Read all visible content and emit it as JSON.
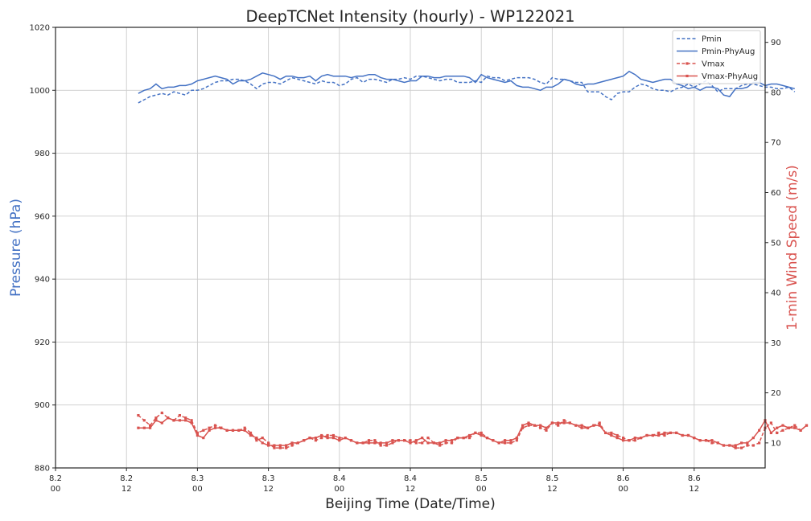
{
  "chart_data": {
    "type": "line",
    "title": "DeepTCNet Intensity (hourly) - WP122021",
    "xlabel": "Beijing Time (Date/Time)",
    "ylabel_left": "Pressure (hPa)",
    "ylabel_right": "1-min Wind Speed (m/s)",
    "grid": true,
    "legend_position": "top-right",
    "x_unit": "hours",
    "x_ticks": [
      {
        "x": 0,
        "label_date": "8.2",
        "label_time": "00"
      },
      {
        "x": 12,
        "label_date": "8.2",
        "label_time": "12"
      },
      {
        "x": 24,
        "label_date": "8.3",
        "label_time": "00"
      },
      {
        "x": 36,
        "label_date": "8.3",
        "label_time": "12"
      },
      {
        "x": 48,
        "label_date": "8.4",
        "label_time": "00"
      },
      {
        "x": 60,
        "label_date": "8.4",
        "label_time": "12"
      },
      {
        "x": 72,
        "label_date": "8.5",
        "label_time": "00"
      },
      {
        "x": 84,
        "label_date": "8.5",
        "label_time": "12"
      },
      {
        "x": 96,
        "label_date": "8.6",
        "label_time": "00"
      },
      {
        "x": 108,
        "label_date": "8.6",
        "label_time": "12"
      }
    ],
    "xlim": [
      0,
      120
    ],
    "y_left": {
      "lim": [
        880,
        1020
      ],
      "ticks": [
        880,
        900,
        920,
        940,
        960,
        980,
        1000,
        1020
      ]
    },
    "y_right": {
      "lim": [
        5,
        93
      ],
      "ticks": [
        10,
        20,
        30,
        40,
        50,
        60,
        70,
        80,
        90
      ]
    },
    "colors": {
      "pressure": "#4472c4",
      "wind": "#d9534f",
      "axis_left_label": "#4472c4",
      "axis_right_label": "#d9534f"
    },
    "series": [
      {
        "name": "Pmin",
        "axis": "left",
        "style": "dashed",
        "marker": "none",
        "x_start": 14,
        "x_step": 1,
        "values": [
          996,
          997,
          998,
          998.5,
          999,
          998.5,
          999.5,
          999,
          998.5,
          1000,
          1000,
          1000.5,
          1001.5,
          1002.5,
          1003,
          1003,
          1003.5,
          1003.5,
          1003,
          1002,
          1000.5,
          1002,
          1002.5,
          1002.5,
          1002,
          1003,
          1004,
          1003.5,
          1003,
          1002.5,
          1002,
          1003,
          1002.5,
          1002.5,
          1001.5,
          1002,
          1003.5,
          1004,
          1002.5,
          1003.5,
          1003.5,
          1003,
          1002.5,
          1003.5,
          1003.5,
          1004,
          1003.5,
          1004.5,
          1004.5,
          1004,
          1003.5,
          1003,
          1003.5,
          1003.5,
          1002.5,
          1002.5,
          1002.5,
          1003,
          1002.5,
          1004.5,
          1004,
          1004,
          1003,
          1003.5,
          1004,
          1004,
          1004,
          1003.5,
          1002.5,
          1002,
          1004,
          1003.5,
          1003.5,
          1003,
          1002.5,
          1002.5,
          999.5,
          999.5,
          999.5,
          998,
          997,
          999,
          999.5,
          999.5,
          1001,
          1002,
          1001.5,
          1000.5,
          1000,
          1000,
          999.5,
          1000.5,
          1001,
          1002,
          1001,
          1002,
          1003,
          1001.5,
          999.5,
          1000.5,
          1000.5,
          1000.5,
          1001.5,
          1002,
          1002,
          1001.5,
          1001,
          1001,
          1000.5,
          1000.5,
          1001,
          999.5
        ]
      },
      {
        "name": "Pmin-PhyAug",
        "axis": "left",
        "style": "solid",
        "marker": "none",
        "x_start": 14,
        "x_step": 1,
        "values": [
          999,
          1000,
          1000.5,
          1002,
          1000.5,
          1001,
          1001,
          1001.5,
          1001.5,
          1002,
          1003,
          1003.5,
          1004,
          1004.5,
          1004,
          1003.5,
          1002,
          1003,
          1003,
          1003.5,
          1004.5,
          1005.5,
          1005,
          1004.5,
          1003.5,
          1004.5,
          1004.5,
          1004,
          1004,
          1004.5,
          1003,
          1004.5,
          1005,
          1004.5,
          1004.5,
          1004.5,
          1004,
          1004.5,
          1004.5,
          1005,
          1005,
          1004,
          1003.5,
          1003.5,
          1003,
          1002.5,
          1003,
          1003,
          1004.5,
          1004.5,
          1004,
          1004,
          1004.5,
          1004.5,
          1004.5,
          1004.5,
          1004,
          1002.5,
          1005,
          1004,
          1003.5,
          1003,
          1002.5,
          1003,
          1001.5,
          1001,
          1001,
          1000.5,
          1000,
          1001,
          1001,
          1002,
          1003.5,
          1003,
          1002,
          1001.5,
          1002,
          1002,
          1002.5,
          1003,
          1003.5,
          1004,
          1004.5,
          1006,
          1005,
          1003.5,
          1003,
          1002.5,
          1003,
          1003.5,
          1003.5,
          1002,
          1001.5,
          1000.5,
          1001,
          1000,
          1001,
          1001,
          1000.5,
          998.5,
          998,
          1000.5,
          1000.5,
          1001,
          1002.5,
          1002.5,
          1001.5,
          1002,
          1002,
          1001.5,
          1001,
          1000.5
        ]
      },
      {
        "name": "Vmax",
        "axis": "right",
        "style": "dashed",
        "marker": "square",
        "x_start": 14,
        "x_step": 1,
        "values": [
          15.5,
          14.5,
          13.5,
          15,
          16,
          15,
          14.5,
          15.5,
          15,
          14.5,
          12,
          12.5,
          13,
          13.5,
          13,
          12.5,
          12.5,
          12.5,
          13,
          12,
          10.5,
          11,
          10,
          9,
          9,
          9,
          9.5,
          10,
          10.5,
          11,
          10.5,
          11,
          11.5,
          11.5,
          11,
          11,
          10.5,
          10,
          10,
          10.5,
          10.5,
          9.5,
          9.5,
          10,
          10.5,
          10.5,
          10.5,
          10,
          10,
          11,
          10,
          9.5,
          10,
          10,
          11,
          11,
          11,
          12,
          12,
          11,
          10.5,
          10,
          10,
          10,
          10.5,
          13,
          13.5,
          13.5,
          13,
          12.5,
          14,
          13.5,
          14.5,
          14,
          13.5,
          13,
          13,
          13.5,
          14,
          12,
          12,
          11.5,
          11,
          10.5,
          10.5,
          11,
          11.5,
          11.5,
          12,
          11.5,
          12,
          12,
          11.5,
          11.5,
          11,
          10.5,
          10.5,
          10,
          10,
          9.5,
          9.5,
          9,
          9,
          9.5,
          9.5,
          10,
          13,
          14,
          12,
          12.5,
          13,
          13.5,
          12.5,
          13.5
        ]
      },
      {
        "name": "Vmax-PhyAug",
        "axis": "right",
        "style": "solid",
        "marker": "square",
        "x_start": 14,
        "x_step": 1,
        "values": [
          13,
          13,
          13,
          14.5,
          14,
          15,
          14.5,
          14.5,
          14.5,
          14,
          11.5,
          11,
          12.5,
          13,
          13,
          12.5,
          12.5,
          12.5,
          12.5,
          11.5,
          11,
          10,
          9.5,
          9.5,
          9.5,
          9.5,
          10,
          10,
          10.5,
          11,
          11,
          11.5,
          11,
          11,
          10.5,
          11,
          10.5,
          10,
          10,
          10,
          10,
          10,
          10,
          10.5,
          10.5,
          10.5,
          10,
          10.5,
          11,
          10,
          10,
          10,
          10.5,
          10.5,
          11,
          11,
          11.5,
          12,
          11.5,
          11,
          10.5,
          10,
          10.5,
          10.5,
          11,
          13.5,
          14,
          13.5,
          13.5,
          13,
          14,
          14,
          14,
          14,
          13.5,
          13.5,
          13,
          13.5,
          13.5,
          12,
          11.5,
          11,
          10.5,
          10.5,
          11,
          11,
          11.5,
          11.5,
          11.5,
          12,
          12,
          12,
          11.5,
          11.5,
          11,
          10.5,
          10.5,
          10.5,
          10,
          9.5,
          9.5,
          9.5,
          10,
          10,
          11,
          12.5,
          14.5,
          12,
          13,
          13.5,
          13,
          13,
          12.5,
          13.5
        ]
      }
    ]
  }
}
